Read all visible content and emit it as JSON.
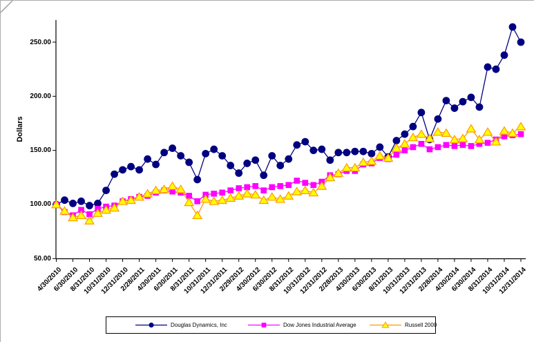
{
  "window": {
    "edge_color": "#ababab",
    "background": "#ffffff"
  },
  "chart_data": {
    "type": "line",
    "title": "",
    "xlabel": "",
    "ylabel": "Dollars",
    "ylim": [
      50,
      275
    ],
    "grid": false,
    "legend_position": "bottom",
    "y_tick_labels": [
      "50.00",
      "100.00",
      "150.00",
      "200.00",
      "250.00"
    ],
    "y_tick_values": [
      50,
      100,
      150,
      200,
      250
    ],
    "x_tick_labels": [
      "4/30/2010",
      "6/30/2010",
      "8/31/2010",
      "10/31/2010",
      "12/31/2010",
      "2/28/2011",
      "4/30/2011",
      "6/30/2011",
      "8/31/2011",
      "10/31/2011",
      "12/31/2011",
      "2/29/2012",
      "4/30/2012",
      "6/30/2012",
      "8/31/2012",
      "10/31/2012",
      "12/31/2012",
      "2/28/2013",
      "4/30/2013",
      "6/30/2013",
      "8/31/2013",
      "10/31/2013",
      "12/31/2013",
      "2/28/2014",
      "4/30/2014",
      "6/30/2014",
      "8/31/2014",
      "10/31/2014",
      "12/31/2014"
    ],
    "points_per_labeled_tick": 2,
    "series": [
      {
        "name": "Douglas Dynamics, Inc",
        "marker": "circle",
        "line_color": "#000080",
        "marker_fill": "#000080",
        "marker_stroke": "#000080",
        "values": [
          100,
          104,
          101,
          103,
          99,
          101,
          113,
          128,
          132,
          135,
          132,
          142,
          137,
          148,
          152,
          145,
          139,
          123,
          147,
          151,
          145,
          136,
          129,
          138,
          141,
          127,
          145,
          136,
          142,
          155,
          158,
          150,
          151,
          141,
          148,
          148,
          149,
          149,
          147,
          153,
          144,
          159,
          165,
          172,
          185,
          160,
          179,
          196,
          189,
          195,
          199,
          190,
          227,
          225,
          238,
          264,
          250
        ]
      },
      {
        "name": "Dow Jones Industrial Average",
        "marker": "square",
        "line_color": "#FF00FF",
        "marker_fill": "#FF00FF",
        "marker_stroke": "#FF00FF",
        "values": [
          100,
          93,
          90,
          95,
          91,
          96,
          98,
          99,
          103,
          105,
          107,
          108,
          111,
          113,
          112,
          111,
          108,
          103,
          109,
          110,
          111,
          113,
          115,
          116,
          117,
          113,
          116,
          117,
          118,
          122,
          120,
          118,
          121,
          127,
          128,
          131,
          131,
          137,
          138,
          143,
          142,
          146,
          150,
          153,
          156,
          151,
          153,
          155,
          154,
          155,
          154,
          156,
          157,
          160,
          163,
          164,
          165
        ]
      },
      {
        "name": "Russell 2000",
        "marker": "triangle",
        "line_color": "#FF9900",
        "marker_fill": "#FFFF00",
        "marker_stroke": "#FF9900",
        "values": [
          100,
          94,
          88,
          90,
          85,
          92,
          95,
          97,
          103,
          104,
          107,
          110,
          113,
          114,
          117,
          114,
          102,
          90,
          105,
          103,
          104,
          106,
          108,
          110,
          109,
          104,
          107,
          105,
          108,
          112,
          113,
          111,
          117,
          125,
          129,
          134,
          134,
          139,
          140,
          145,
          143,
          152,
          156,
          162,
          165,
          161,
          167,
          166,
          160,
          161,
          170,
          160,
          167,
          158,
          168,
          166,
          172
        ]
      }
    ]
  }
}
